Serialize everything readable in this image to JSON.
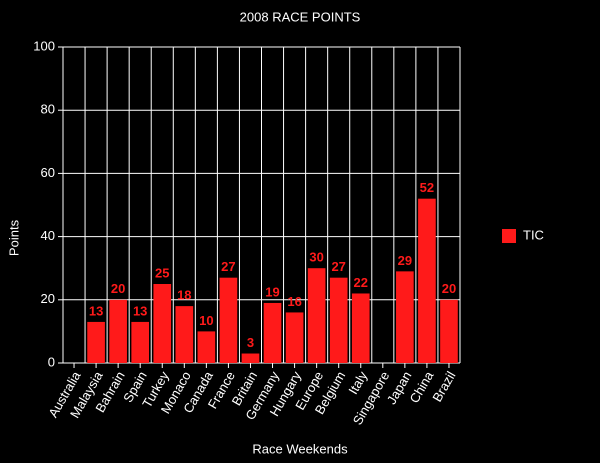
{
  "chart_data": {
    "type": "bar",
    "title": "2008 RACE POINTS",
    "x_label": "Race Weekends",
    "y_label": "Points",
    "categories": [
      "Australia",
      "Malaysia",
      "Bahrain",
      "Spain",
      "Turkey",
      "Monaco",
      "Canada",
      "France",
      "Britain",
      "Germany",
      "Hungary",
      "Europe",
      "Belgium",
      "Italy",
      "Singapore",
      "Japan",
      "China",
      "Brazil"
    ],
    "series": [
      {
        "name": "TIC",
        "color": "#ff1a1a",
        "values": [
          null,
          13,
          20,
          13,
          25,
          18,
          10,
          27,
          3,
          19,
          16,
          30,
          27,
          22,
          null,
          29,
          52,
          20
        ]
      }
    ],
    "ylim": [
      0,
      100
    ],
    "yticks": [
      0,
      20,
      40,
      60,
      80,
      100
    ],
    "grid": true,
    "legend": "right"
  }
}
